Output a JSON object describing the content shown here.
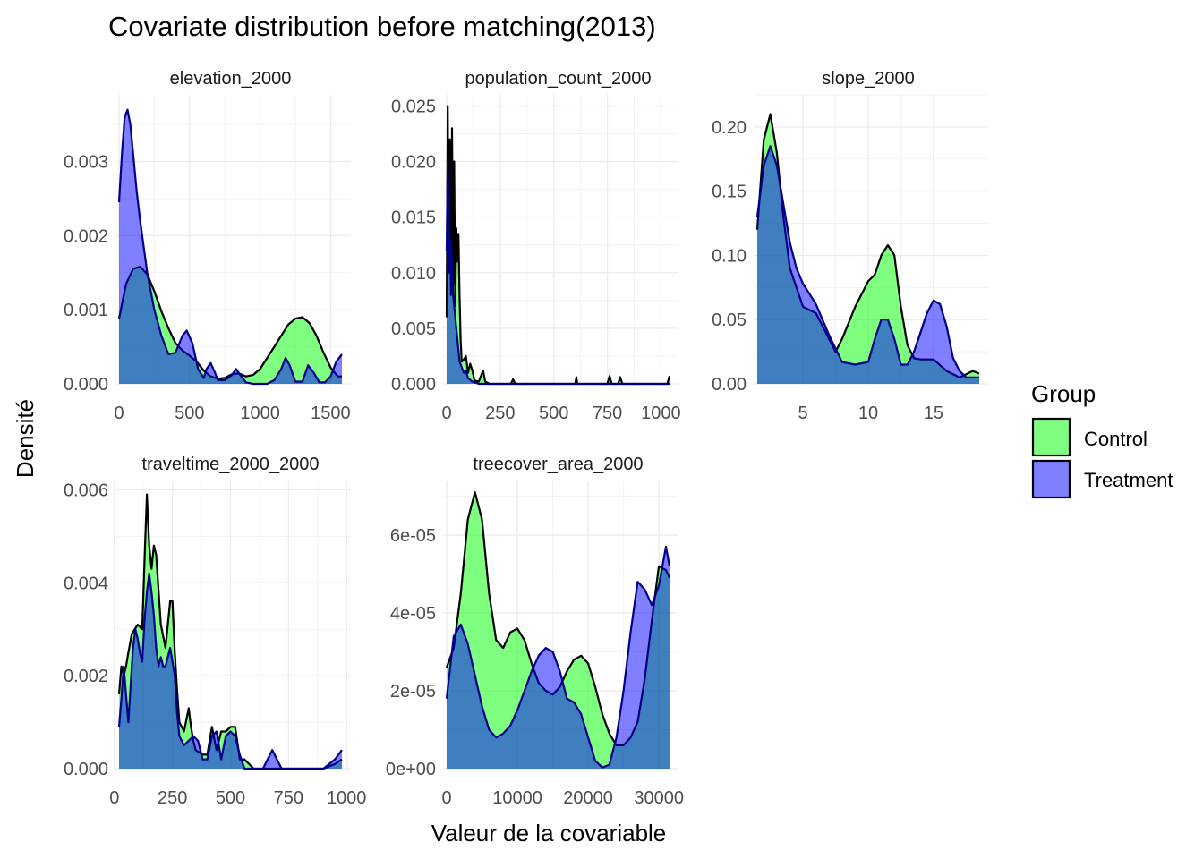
{
  "title": "Covariate distribution before matching(2013)",
  "xlabel": "Valeur de la covariable",
  "ylabel": "Densité",
  "legend": {
    "title": "Group",
    "items": [
      {
        "label": "Control",
        "color": "#00ff00"
      },
      {
        "label": "Treatment",
        "color": "#0000ff"
      }
    ]
  },
  "chart_data": [
    {
      "type": "area",
      "facet": "elevation_2000",
      "xlim": [
        0,
        1580
      ],
      "ylim": [
        0,
        0.0039
      ],
      "xticks": [
        0,
        500,
        1000,
        1500
      ],
      "xticklabels": [
        "0",
        "500",
        "1000",
        "1500"
      ],
      "yticks": [
        0,
        0.001,
        0.002,
        0.003
      ],
      "yticklabels": [
        "0.000",
        "0.001",
        "0.002",
        "0.003"
      ],
      "grid": true,
      "series": [
        {
          "name": "Control",
          "x": [
            0,
            50,
            100,
            150,
            200,
            250,
            300,
            350,
            400,
            450,
            500,
            550,
            600,
            650,
            700,
            750,
            800,
            850,
            900,
            950,
            1000,
            1050,
            1100,
            1150,
            1200,
            1250,
            1300,
            1350,
            1400,
            1450,
            1500,
            1550,
            1580
          ],
          "y": [
            0.00088,
            0.00135,
            0.00155,
            0.00158,
            0.00148,
            0.00125,
            0.00098,
            0.00075,
            0.00055,
            0.00045,
            0.00038,
            0.0003,
            0.00018,
            0.0001,
            7e-05,
            8e-05,
            0.00013,
            0.00014,
            0.0001,
            0.00012,
            0.0002,
            0.00035,
            0.0005,
            0.00065,
            0.0008,
            0.00088,
            0.0009,
            0.00082,
            0.00065,
            0.00042,
            0.00022,
            0.0001,
            0.0001
          ]
        },
        {
          "name": "Treatment",
          "x": [
            0,
            20,
            40,
            60,
            80,
            100,
            125,
            150,
            200,
            250,
            300,
            350,
            400,
            450,
            480,
            520,
            560,
            600,
            620,
            650,
            680,
            700,
            750,
            800,
            830,
            860,
            900,
            950,
            1000,
            1050,
            1100,
            1150,
            1180,
            1210,
            1250,
            1300,
            1340,
            1380,
            1420,
            1460,
            1500,
            1540,
            1580
          ],
          "y": [
            0.00245,
            0.0031,
            0.0036,
            0.0037,
            0.0035,
            0.0031,
            0.0026,
            0.0022,
            0.0015,
            0.001,
            0.00065,
            0.0004,
            0.00042,
            0.00065,
            0.00072,
            0.00055,
            0.0002,
            8e-05,
            0.0002,
            0.00028,
            0.00015,
            5e-05,
            5e-05,
            0.00012,
            0.0002,
            0.00012,
            2e-05,
            0,
            0,
            0,
            5e-05,
            0.0002,
            0.00035,
            0.00025,
            3e-05,
            3e-05,
            0.00025,
            0.00015,
            2e-05,
            2e-05,
            0.0001,
            0.0003,
            0.0004
          ]
        }
      ]
    },
    {
      "type": "area",
      "facet": "population_count_2000",
      "xlim": [
        0,
        1040
      ],
      "ylim": [
        0,
        0.026
      ],
      "xticks": [
        0,
        250,
        500,
        750,
        1000
      ],
      "xticklabels": [
        "0",
        "250",
        "500",
        "750",
        "1000"
      ],
      "yticks": [
        0,
        0.005,
        0.01,
        0.015,
        0.02,
        0.025
      ],
      "yticklabels": [
        "0.000",
        "0.005",
        "0.010",
        "0.015",
        "0.020",
        "0.025"
      ],
      "grid": true,
      "series": [
        {
          "name": "Control",
          "x": [
            0,
            5,
            10,
            15,
            20,
            25,
            30,
            35,
            40,
            45,
            50,
            55,
            60,
            65,
            70,
            80,
            90,
            100,
            110,
            120,
            130,
            150,
            170,
            180,
            200,
            300,
            310,
            320,
            600,
            605,
            610,
            750,
            760,
            770,
            800,
            810,
            820,
            850,
            1000,
            1030,
            1040
          ],
          "y": [
            0.006,
            0.025,
            0.01,
            0.022,
            0.008,
            0.023,
            0.009,
            0.02,
            0.007,
            0.014,
            0.011,
            0.0135,
            0.008,
            0.004,
            0.002,
            0.0022,
            0.0025,
            0.001,
            0.0018,
            0.0012,
            0.0003,
            0.0002,
            0.0012,
            0.0002,
            0,
            0,
            0.0004,
            0,
            0,
            0.0006,
            0,
            0,
            0.0007,
            0,
            0,
            0.0006,
            0,
            0,
            0,
            0,
            0.0007
          ]
        },
        {
          "name": "Treatment",
          "x": [
            0,
            5,
            10,
            15,
            20,
            30,
            40,
            50,
            60,
            70,
            80,
            90,
            100,
            120,
            150,
            200,
            300,
            1040
          ],
          "y": [
            0.012,
            0.02,
            0.014,
            0.012,
            0.013,
            0.008,
            0.006,
            0.004,
            0.002,
            0.0015,
            0.001,
            0.0012,
            0.0005,
            0.0002,
            0,
            0,
            0,
            0
          ]
        }
      ]
    },
    {
      "type": "area",
      "facet": "slope_2000",
      "xlim": [
        1.5,
        18.5
      ],
      "ylim": [
        0,
        0.225
      ],
      "xticks": [
        5,
        10,
        15
      ],
      "xticklabels": [
        "5",
        "10",
        "15"
      ],
      "yticks": [
        0,
        0.05,
        0.1,
        0.15,
        0.2
      ],
      "yticklabels": [
        "0.00",
        "0.05",
        "0.10",
        "0.15",
        "0.20"
      ],
      "grid": true,
      "series": [
        {
          "name": "Control",
          "x": [
            1.5,
            2,
            2.5,
            3,
            3.5,
            4,
            5,
            6,
            7,
            7.5,
            8,
            9,
            10,
            10.5,
            11,
            11.5,
            12,
            12.5,
            13,
            13.5,
            14,
            15,
            16,
            17,
            18,
            18.5
          ],
          "y": [
            0.12,
            0.19,
            0.21,
            0.18,
            0.13,
            0.09,
            0.06,
            0.055,
            0.035,
            0.025,
            0.035,
            0.06,
            0.08,
            0.085,
            0.1,
            0.108,
            0.1,
            0.06,
            0.03,
            0.02,
            0.019,
            0.019,
            0.01,
            0.005,
            0.01,
            0.008
          ]
        },
        {
          "name": "Treatment",
          "x": [
            1.5,
            2,
            2.5,
            3,
            3.5,
            4,
            4.5,
            5,
            5.5,
            6,
            6.5,
            7,
            8,
            9,
            10,
            10.5,
            11,
            11.5,
            12,
            12.5,
            13,
            13.5,
            14,
            14.5,
            15,
            15.5,
            16,
            16.5,
            17,
            17.5,
            18,
            18.5
          ],
          "y": [
            0.13,
            0.17,
            0.185,
            0.17,
            0.14,
            0.11,
            0.09,
            0.078,
            0.07,
            0.062,
            0.05,
            0.038,
            0.017,
            0.015,
            0.017,
            0.035,
            0.05,
            0.05,
            0.035,
            0.015,
            0.015,
            0.025,
            0.04,
            0.055,
            0.065,
            0.062,
            0.045,
            0.02,
            0.01,
            0.005,
            0.005,
            0.005
          ]
        }
      ]
    },
    {
      "type": "area",
      "facet": "traveltime_2000_2000",
      "xlim": [
        20,
        980
      ],
      "ylim": [
        0,
        0.0062
      ],
      "xticks": [
        0,
        250,
        500,
        750,
        1000
      ],
      "xticklabels": [
        "0",
        "250",
        "500",
        "750",
        "1000"
      ],
      "yticks": [
        0,
        0.002,
        0.004,
        0.006
      ],
      "yticklabels": [
        "0.000",
        "0.002",
        "0.004",
        "0.006"
      ],
      "grid": true,
      "series": [
        {
          "name": "Control",
          "x": [
            20,
            30,
            40,
            50,
            60,
            75,
            100,
            120,
            130,
            140,
            150,
            160,
            170,
            180,
            200,
            220,
            240,
            250,
            260,
            270,
            280,
            300,
            320,
            330,
            340,
            350,
            380,
            400,
            420,
            440,
            460,
            480,
            500,
            520,
            540,
            560,
            600,
            640,
            660,
            680,
            700,
            720,
            760,
            800,
            850,
            900,
            950,
            980
          ],
          "y": [
            0.0016,
            0.0022,
            0.002,
            0.0022,
            0.0025,
            0.0029,
            0.0031,
            0.003,
            0.0045,
            0.0059,
            0.0048,
            0.0043,
            0.0048,
            0.0046,
            0.0031,
            0.0026,
            0.0036,
            0.0036,
            0.0025,
            0.0017,
            0.001,
            0.0008,
            0.0013,
            0.0009,
            0.0006,
            0.0004,
            0.0003,
            0.0003,
            0.0009,
            0.0004,
            0.0008,
            0.0008,
            0.0009,
            0.0009,
            0.0002,
            0.0002,
            0,
            0,
            0,
            0,
            0,
            0,
            0,
            0,
            0,
            0,
            0.0001,
            0.0002
          ]
        },
        {
          "name": "Treatment",
          "x": [
            20,
            30,
            40,
            50,
            60,
            70,
            80,
            90,
            100,
            110,
            120,
            130,
            140,
            150,
            160,
            170,
            180,
            190,
            200,
            210,
            220,
            240,
            260,
            270,
            280,
            290,
            300,
            320,
            340,
            360,
            380,
            400,
            420,
            440,
            460,
            480,
            500,
            520,
            540,
            560,
            580,
            600,
            640,
            660,
            680,
            700,
            720,
            760,
            800,
            850,
            900,
            950,
            980
          ],
          "y": [
            0.0009,
            0.0015,
            0.0022,
            0.0016,
            0.001,
            0.0018,
            0.0026,
            0.003,
            0.0028,
            0.0025,
            0.0023,
            0.0032,
            0.0038,
            0.0042,
            0.0038,
            0.0033,
            0.0026,
            0.0022,
            0.0024,
            0.0022,
            0.0022,
            0.0026,
            0.002,
            0.0012,
            0.0007,
            0.0006,
            0.0005,
            0.0006,
            0.0007,
            0.0006,
            0.0002,
            0.0002,
            0.0007,
            0.0008,
            0.0002,
            0.0007,
            0.0008,
            0.0007,
            0.0003,
            0,
            0,
            0,
            0,
            0.0002,
            0.0004,
            0.0002,
            0,
            0,
            0,
            0,
            0,
            0.0002,
            0.0004
          ]
        }
      ]
    },
    {
      "type": "area",
      "facet": "treecover_area_2000",
      "xlim": [
        0,
        31500
      ],
      "ylim": [
        0,
        7.4e-05
      ],
      "xticks": [
        0,
        10000,
        20000,
        30000
      ],
      "xticklabels": [
        "0",
        "10000",
        "20000",
        "30000"
      ],
      "yticks": [
        0,
        2e-05,
        4e-05,
        6e-05
      ],
      "yticklabels": [
        "0e+00",
        "2e-05",
        "4e-05",
        "6e-05"
      ],
      "grid": true,
      "series": [
        {
          "name": "Control",
          "x": [
            0,
            1000,
            2000,
            3000,
            4000,
            5000,
            6000,
            7000,
            8000,
            9000,
            10000,
            11000,
            12000,
            13000,
            14000,
            15000,
            16000,
            17000,
            18000,
            19000,
            20000,
            21000,
            22000,
            23000,
            24000,
            25000,
            26000,
            27000,
            28000,
            29000,
            30000,
            31000,
            31500
          ],
          "y": [
            2.6e-05,
            3.1e-05,
            4.5e-05,
            6.4e-05,
            7.1e-05,
            6.4e-05,
            4.5e-05,
            3.3e-05,
            3.1e-05,
            3.5e-05,
            3.6e-05,
            3.3e-05,
            2.7e-05,
            2.2e-05,
            2e-05,
            1.9e-05,
            2.1e-05,
            2.5e-05,
            2.8e-05,
            2.9e-05,
            2.7e-05,
            2.1e-05,
            1.4e-05,
            9e-06,
            6e-06,
            6e-06,
            8e-06,
            1.2e-05,
            2.3e-05,
            3.8e-05,
            5.2e-05,
            5.1e-05,
            4.9e-05
          ]
        },
        {
          "name": "Treatment",
          "x": [
            0,
            1000,
            2000,
            3000,
            4000,
            5000,
            6000,
            7000,
            8000,
            9000,
            10000,
            11000,
            12000,
            13000,
            14000,
            15000,
            16000,
            17000,
            18000,
            19000,
            20000,
            21000,
            22000,
            23000,
            24000,
            25000,
            26000,
            27000,
            28000,
            29000,
            30000,
            31000,
            31500
          ],
          "y": [
            1.8e-05,
            3.4e-05,
            3.7e-05,
            3.2e-05,
            2.4e-05,
            1.6e-05,
            1e-05,
            8e-06,
            9e-06,
            1.1e-05,
            1.5e-05,
            2e-05,
            2.5e-05,
            2.9e-05,
            3.1e-05,
            3e-05,
            2.5e-05,
            1.8e-05,
            1.7e-05,
            1.4e-05,
            8e-06,
            2e-06,
            3e-07,
            1e-06,
            8e-06,
            2e-05,
            3.5e-05,
            4.8e-05,
            4.6e-05,
            4.2e-05,
            4.7e-05,
            5.7e-05,
            5.2e-05
          ]
        }
      ]
    }
  ]
}
